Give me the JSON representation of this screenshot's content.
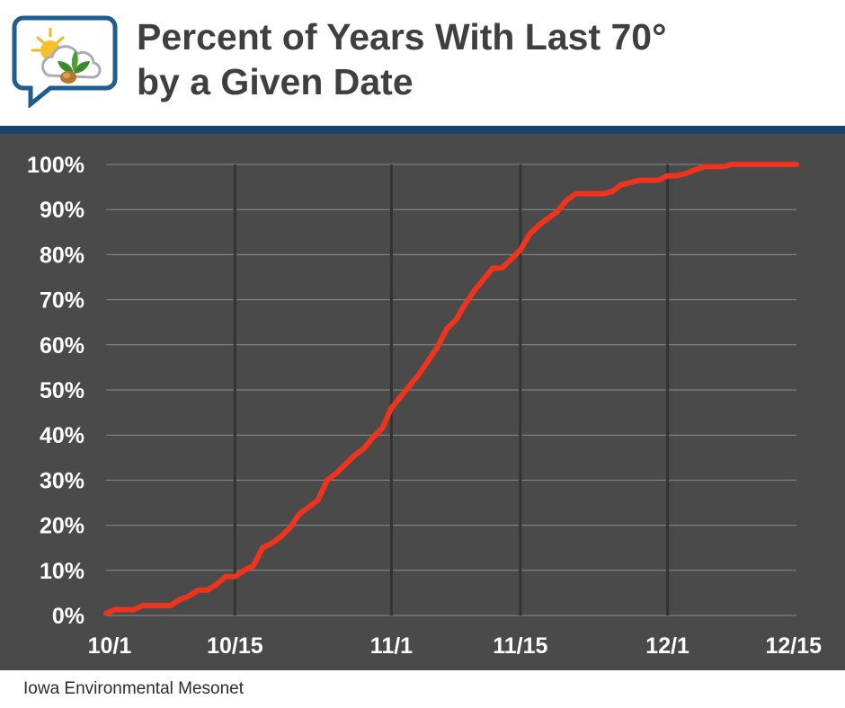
{
  "header": {
    "title_line1": "Percent of Years With Last 70°",
    "title_line2": "by a Given Date"
  },
  "footer": {
    "source": "Iowa Environmental Mesonet"
  },
  "colors": {
    "background": "#4a4a4a",
    "gridline": "#8c8c8c",
    "major_gridline": "#333333",
    "line": "#f0331d",
    "header_rule": "#18446b",
    "tick_text": "#ffffff"
  },
  "chart_data": {
    "type": "line",
    "title": "Percent of Years With Last 70° by a Given Date",
    "xlabel": "",
    "ylabel": "",
    "x_tick_labels": [
      "10/1",
      "10/15",
      "11/1",
      "11/15",
      "12/1",
      "12/15"
    ],
    "x_tick_dates": [
      "10/1",
      "10/15",
      "11/1",
      "11/15",
      "12/1",
      "12/15"
    ],
    "y_tick_labels": [
      "0%",
      "10%",
      "20%",
      "30%",
      "40%",
      "50%",
      "60%",
      "70%",
      "80%",
      "90%",
      "100%"
    ],
    "ylim": [
      0,
      100
    ],
    "xlim": [
      "10/1",
      "12/15"
    ],
    "grid": true,
    "legend": "none",
    "series": [
      {
        "x": [
          "10/1",
          "10/2",
          "10/3",
          "10/4",
          "10/5",
          "10/6",
          "10/7",
          "10/8",
          "10/9",
          "10/10",
          "10/11",
          "10/12",
          "10/13",
          "10/14",
          "10/15",
          "10/16",
          "10/17",
          "10/18",
          "10/19",
          "10/20",
          "10/21",
          "10/22",
          "10/23",
          "10/24",
          "10/25",
          "10/26",
          "10/27",
          "10/28",
          "10/29",
          "10/30",
          "10/31",
          "11/1",
          "11/2",
          "11/3",
          "11/4",
          "11/5",
          "11/6",
          "11/7",
          "11/8",
          "11/9",
          "11/10",
          "11/11",
          "11/12",
          "11/13",
          "11/14",
          "11/15",
          "11/16",
          "11/17",
          "11/18",
          "11/19",
          "11/20",
          "11/21",
          "11/22",
          "11/23",
          "11/24",
          "11/25",
          "11/26",
          "11/27",
          "11/28",
          "11/29",
          "11/30",
          "12/1",
          "12/2",
          "12/3",
          "12/4",
          "12/5",
          "12/6",
          "12/7",
          "12/8",
          "12/9",
          "12/10",
          "12/11",
          "12/12",
          "12/13",
          "12/14",
          "12/15"
        ],
        "y": [
          0.5,
          1.3,
          1.3,
          1.3,
          2.2,
          2.2,
          2.2,
          2.2,
          3.5,
          4.3,
          5.6,
          5.6,
          6.9,
          8.6,
          8.6,
          10,
          11,
          15,
          16,
          17.5,
          19.5,
          22.5,
          24,
          25.5,
          30,
          31.5,
          33.5,
          35.5,
          37,
          39.5,
          41.5,
          46,
          48.5,
          51,
          53.5,
          56.5,
          59.5,
          63.5,
          65.5,
          69,
          72,
          74.5,
          77,
          77,
          79,
          81,
          84.5,
          86.5,
          88,
          89.5,
          92,
          93.5,
          93.5,
          93.5,
          93.5,
          94,
          95.5,
          96,
          96.5,
          96.5,
          96.5,
          97.5,
          97.5,
          98,
          98.8,
          99.5,
          99.5,
          99.5,
          100,
          100,
          100,
          100,
          100,
          100,
          100,
          100
        ]
      }
    ]
  }
}
